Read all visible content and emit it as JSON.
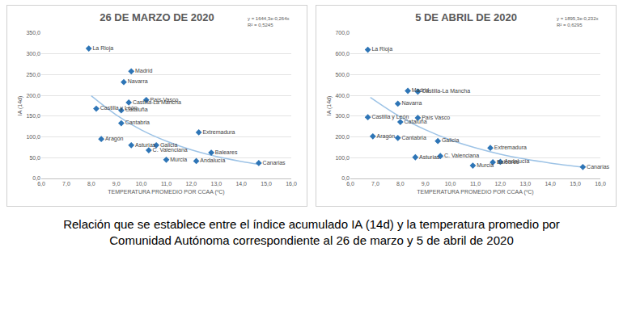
{
  "chart_data": [
    {
      "type": "scatter",
      "title": "26 DE MARZO DE 2020",
      "x_label": "TEMPERATURA PROMEDIO POR CCAA (ºC)",
      "y_label": "IA (14d)",
      "marker": "diamond",
      "color": "#2e75b6",
      "grid": true,
      "labels": [
        "La Rioja",
        "Madrid",
        "Navarra",
        "País Vasco",
        "Castilla-La Mancha",
        "Castilla y León",
        "Cataluña",
        "Cantabria",
        "Extremadura",
        "Aragón",
        "Asturias",
        "Galicia",
        "C. Valenciana",
        "Baleares",
        "Murcia",
        "Andalucía",
        "Canarias"
      ],
      "x": [
        7.9,
        9.6,
        9.3,
        10.2,
        9.5,
        8.2,
        9.2,
        9.2,
        12.3,
        8.4,
        9.6,
        10.6,
        10.3,
        12.8,
        11.0,
        12.2,
        14.7
      ],
      "values": [
        313,
        258,
        232,
        189,
        183,
        168,
        164,
        133,
        111,
        95,
        80,
        80,
        68,
        62,
        45,
        42,
        37
      ],
      "trendline": {
        "type": "line",
        "color": "#9dc3e6",
        "line_style": "solid",
        "equation": "y = 1644,3e-0,264x",
        "r2": "R² = 0,5245",
        "x": [
          8,
          9,
          10,
          11,
          12,
          13,
          14,
          14.7
        ],
        "values": [
          199,
          153,
          117,
          90,
          69,
          53,
          41,
          34
        ]
      },
      "xlim": [
        6,
        16
      ],
      "xticks": [
        {
          "value": 6,
          "label": "6,0"
        },
        {
          "value": 7,
          "label": "7,0"
        },
        {
          "value": 8,
          "label": "8,0"
        },
        {
          "value": 9,
          "label": "9,0"
        },
        {
          "value": 10,
          "label": "10,0"
        },
        {
          "value": 11,
          "label": "11,0"
        },
        {
          "value": 12,
          "label": "12,0"
        },
        {
          "value": 13,
          "label": "13,0"
        },
        {
          "value": 14,
          "label": "14,0"
        },
        {
          "value": 15,
          "label": "15,0"
        },
        {
          "value": 16,
          "label": "16,0"
        }
      ],
      "ylim": [
        0,
        350
      ],
      "yticks": [
        {
          "value": 0,
          "label": "0,0"
        },
        {
          "value": 50,
          "label": "50,0"
        },
        {
          "value": 100,
          "label": "100,0"
        },
        {
          "value": 150,
          "label": "150,0"
        },
        {
          "value": 200,
          "label": "200,0"
        },
        {
          "value": 250,
          "label": "250,0"
        },
        {
          "value": 300,
          "label": "300,0"
        },
        {
          "value": 350,
          "label": "350,0"
        }
      ]
    },
    {
      "type": "scatter",
      "title": "5 DE ABRIL DE 2020",
      "x_label": "TEMPERATURA PROMEDIO POR CCAA (ºC)",
      "y_label": "IA (14d)",
      "marker": "diamond",
      "color": "#2e75b6",
      "grid": true,
      "labels": [
        "La Rioja",
        "Madrid",
        "Castilla-La Mancha",
        "Navarra",
        "Castilla y León",
        "País Vasco",
        "Cataluña",
        "Aragón",
        "Cantabria",
        "Galicia",
        "Extremadura",
        "Asturias",
        "C. Valenciana",
        "Murcia",
        "Baleares",
        "Andalucía",
        "Canarias"
      ],
      "x": [
        6.7,
        8.3,
        8.7,
        7.9,
        6.7,
        8.7,
        8.0,
        6.9,
        7.9,
        9.5,
        11.6,
        8.6,
        9.6,
        10.9,
        11.7,
        12.0,
        15.3
      ],
      "values": [
        620,
        422,
        418,
        360,
        295,
        292,
        272,
        203,
        195,
        180,
        147,
        102,
        108,
        62,
        78,
        80,
        55
      ],
      "trendline": {
        "type": "line",
        "color": "#9dc3e6",
        "line_style": "solid",
        "equation": "y = 1895,3e-0,232x",
        "r2": "R² = 0,6295",
        "x": [
          6.8,
          8,
          9,
          10,
          11,
          12,
          13,
          14,
          15.3
        ],
        "values": [
          390,
          296,
          235,
          186,
          148,
          117,
          93,
          74,
          54
        ]
      },
      "xlim": [
        6,
        16
      ],
      "xticks": [
        {
          "value": 6,
          "label": "6,0"
        },
        {
          "value": 7,
          "label": "7,0"
        },
        {
          "value": 8,
          "label": "8,0"
        },
        {
          "value": 9,
          "label": "9,0"
        },
        {
          "value": 10,
          "label": "10,0"
        },
        {
          "value": 11,
          "label": "11,0"
        },
        {
          "value": 12,
          "label": "12,0"
        },
        {
          "value": 13,
          "label": "13,0"
        },
        {
          "value": 14,
          "label": "14,0"
        },
        {
          "value": 15,
          "label": "15,0"
        },
        {
          "value": 16,
          "label": "16,0"
        }
      ],
      "ylim": [
        0,
        700
      ],
      "yticks": [
        {
          "value": 0,
          "label": "0,0"
        },
        {
          "value": 100,
          "label": "100,0"
        },
        {
          "value": 200,
          "label": "200,0"
        },
        {
          "value": 300,
          "label": "300,0"
        },
        {
          "value": 400,
          "label": "400,0"
        },
        {
          "value": 500,
          "label": "500,0"
        },
        {
          "value": 600,
          "label": "600,0"
        },
        {
          "value": 700,
          "label": "700,0"
        }
      ]
    }
  ],
  "caption": "Relación que se establece entre el índice acumulado IA (14d)  y la temperatura promedio por Comunidad Autónoma correspondiente al 26 de marzo y 5 de abril de 2020"
}
